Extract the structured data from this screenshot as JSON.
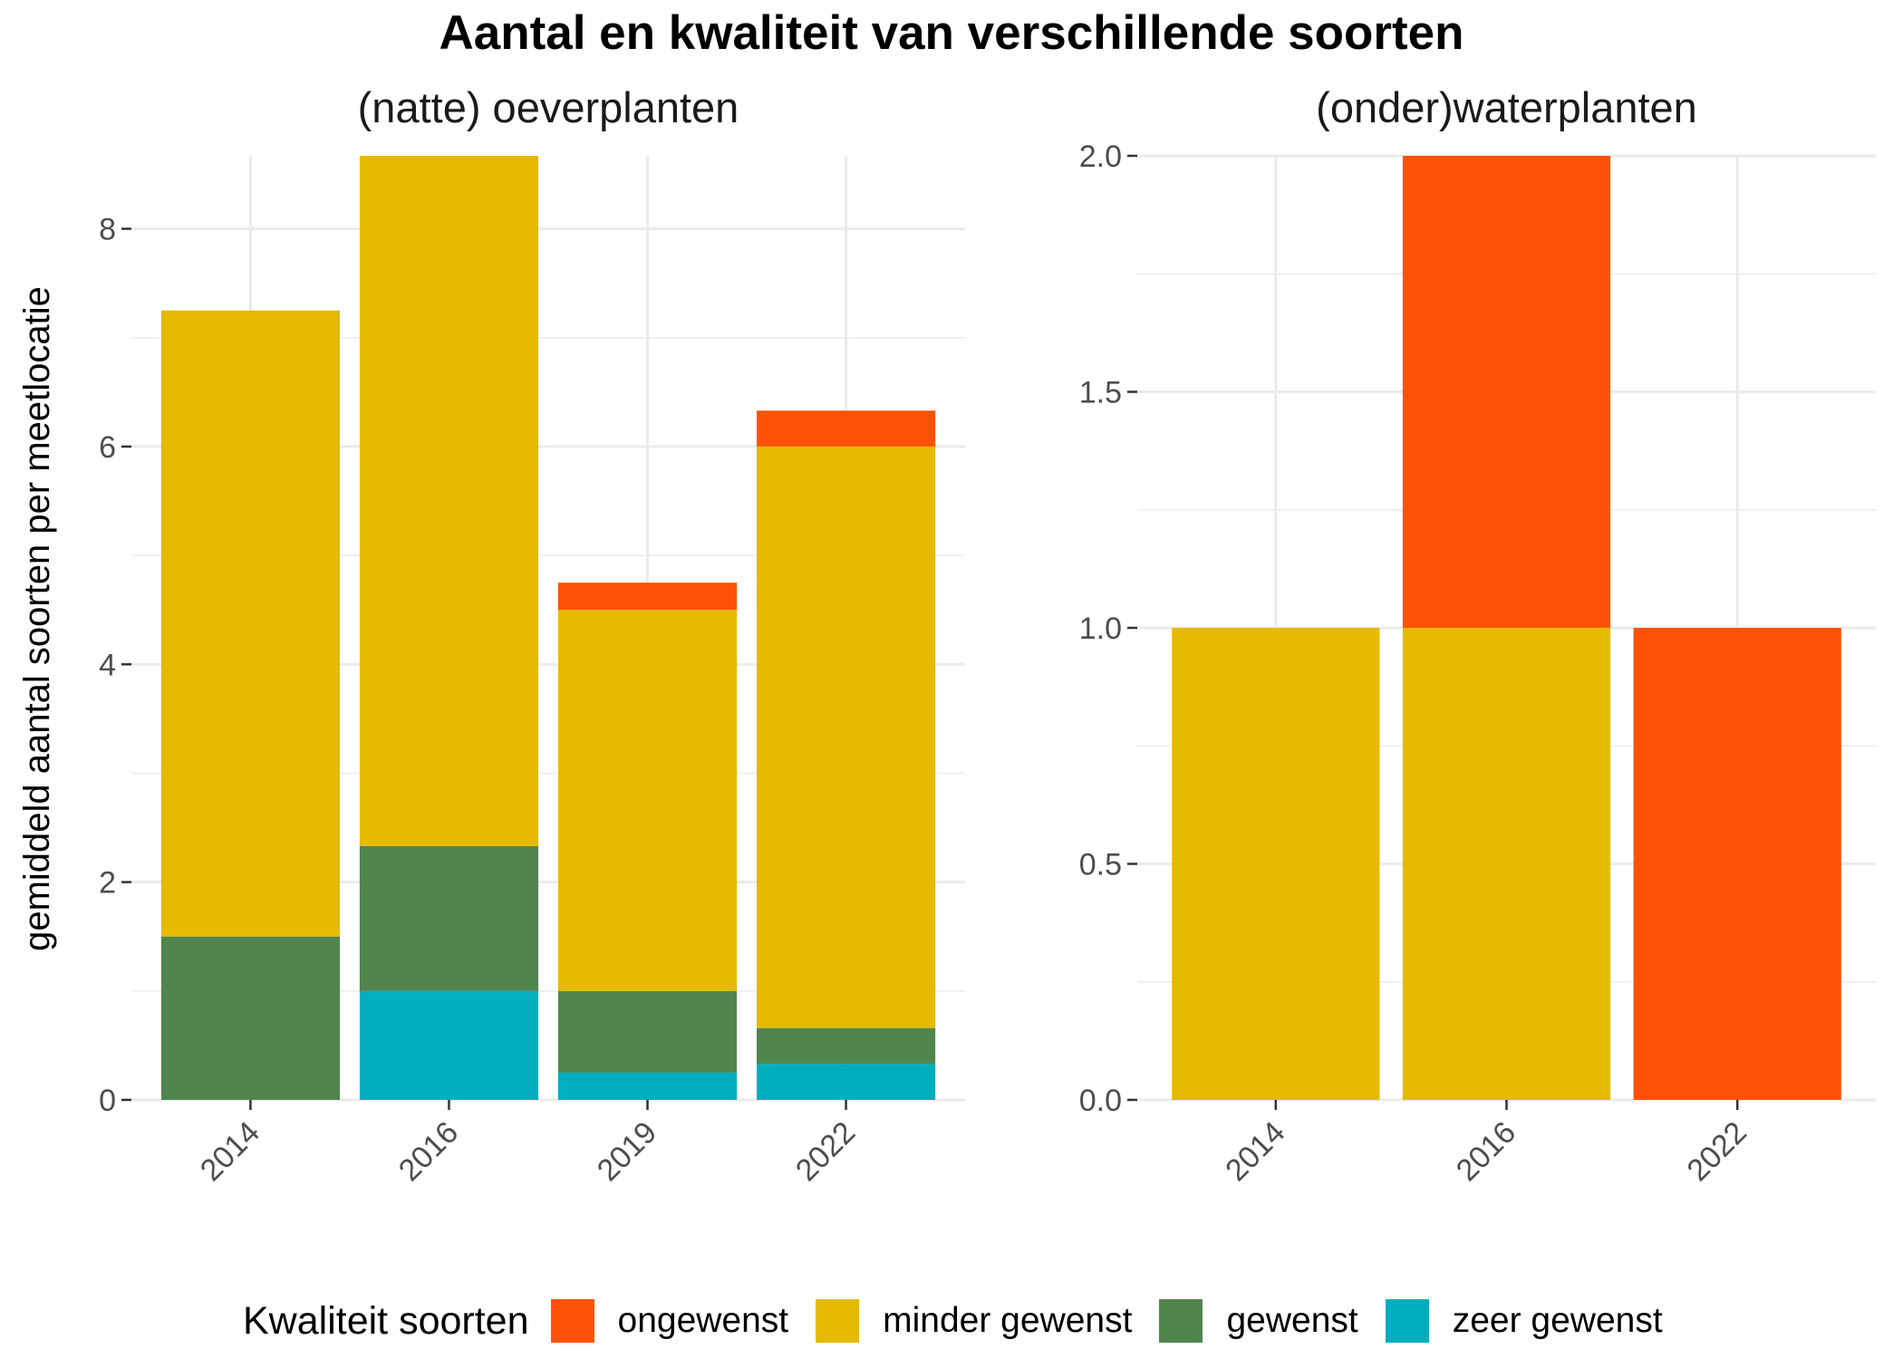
{
  "title": "Aantal en kwaliteit van verschillende soorten",
  "colors": {
    "ongewenst": "#FF5208",
    "minder gewenst": "#E5BA00",
    "gewenst": "#51854E",
    "zeer gewenst": "#00AEBE",
    "grid": "#EBEBEB",
    "axis_text": "#4D4D4D"
  },
  "legend": {
    "title": "Kwaliteit soorten",
    "items": [
      {
        "key": "ongewenst",
        "label": "ongewenst"
      },
      {
        "key": "minder gewenst",
        "label": "minder gewenst"
      },
      {
        "key": "gewenst",
        "label": "gewenst"
      },
      {
        "key": "zeer gewenst",
        "label": "zeer gewenst"
      }
    ]
  },
  "chart_data": [
    {
      "type": "bar",
      "stacked": true,
      "title": "(natte) oeverplanten",
      "ylabel": "gemiddeld aantal soorten per meetlocatie",
      "xlabel": "",
      "ylim": [
        0,
        8.67
      ],
      "yticks": [
        0,
        2,
        4,
        6,
        8
      ],
      "ytick_labels": [
        "0",
        "2",
        "4",
        "6",
        "8"
      ],
      "categories": [
        "2014",
        "2016",
        "2019",
        "2022"
      ],
      "series": [
        {
          "name": "zeer gewenst",
          "values": [
            0,
            1.0,
            0.25,
            0.33
          ]
        },
        {
          "name": "gewenst",
          "values": [
            1.5,
            1.33,
            0.75,
            0.33
          ]
        },
        {
          "name": "minder gewenst",
          "values": [
            5.75,
            6.34,
            3.5,
            5.34
          ]
        },
        {
          "name": "ongewenst",
          "values": [
            0,
            0,
            0.25,
            0.33
          ]
        }
      ]
    },
    {
      "type": "bar",
      "stacked": true,
      "title": "(onder)waterplanten",
      "ylabel": "",
      "xlabel": "",
      "ylim": [
        0,
        2.0
      ],
      "yticks": [
        0,
        0.5,
        1.0,
        1.5,
        2.0
      ],
      "ytick_labels": [
        "0.0",
        "0.5",
        "1.0",
        "1.5",
        "2.0"
      ],
      "categories": [
        "2014",
        "2016",
        "2022"
      ],
      "series": [
        {
          "name": "zeer gewenst",
          "values": [
            0,
            0,
            0
          ]
        },
        {
          "name": "gewenst",
          "values": [
            0,
            0,
            0
          ]
        },
        {
          "name": "minder gewenst",
          "values": [
            1.0,
            1.0,
            0
          ]
        },
        {
          "name": "ongewenst",
          "values": [
            0,
            1.0,
            1.0
          ]
        }
      ]
    }
  ]
}
